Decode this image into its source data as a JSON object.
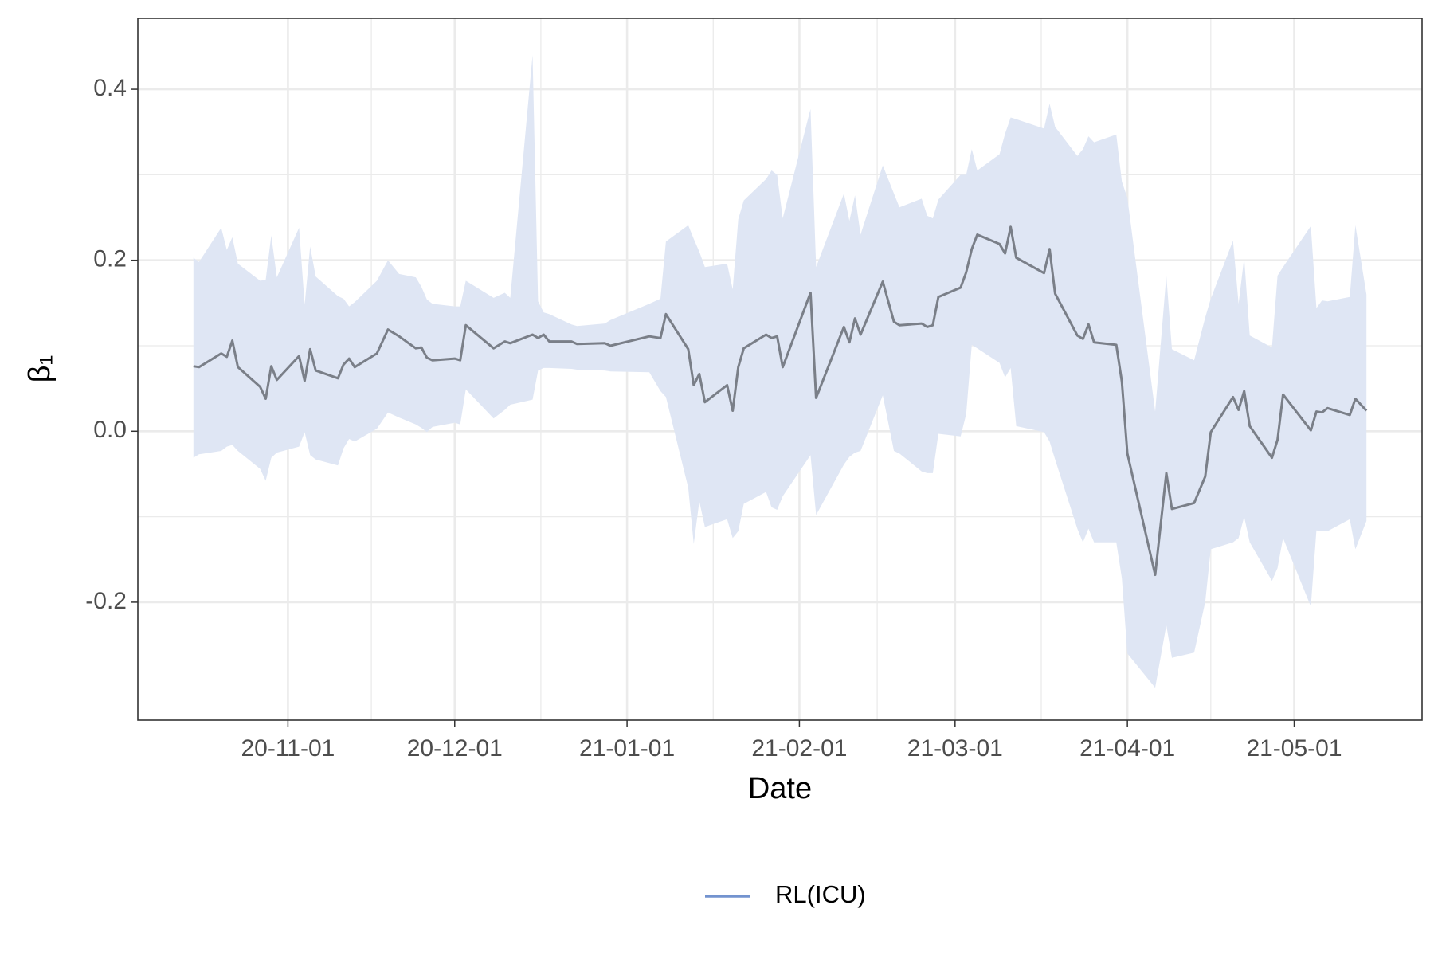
{
  "chart_data": {
    "type": "line-band",
    "xlabel": "Date",
    "ylabel": "β₁",
    "xlim": [
      "2020-10-05",
      "2021-05-24"
    ],
    "xticks": [
      {
        "value": "2020-11-01",
        "label": "20-11-01"
      },
      {
        "value": "2020-12-01",
        "label": "20-12-01"
      },
      {
        "value": "2021-01-01",
        "label": "21-01-01"
      },
      {
        "value": "2021-02-01",
        "label": "21-02-01"
      },
      {
        "value": "2021-03-01",
        "label": "21-03-01"
      },
      {
        "value": "2021-04-01",
        "label": "21-04-01"
      },
      {
        "value": "2021-05-01",
        "label": "21-05-01"
      }
    ],
    "ylim": [
      -0.338,
      0.483
    ],
    "yticks": [
      -0.2,
      {
        "value": 0,
        "label": "0.0"
      },
      0.2,
      0.4
    ],
    "grid": true,
    "legend": "bottom",
    "x": [
      "2020-10-15",
      "2020-10-16",
      "2020-10-20",
      "2020-10-21",
      "2020-10-22",
      "2020-10-23",
      "2020-10-27",
      "2020-10-28",
      "2020-10-29",
      "2020-10-30",
      "2020-11-03",
      "2020-11-04",
      "2020-11-05",
      "2020-11-06",
      "2020-11-10",
      "2020-11-11",
      "2020-11-12",
      "2020-11-13",
      "2020-11-17",
      "2020-11-19",
      "2020-11-21",
      "2020-11-24",
      "2020-11-25",
      "2020-11-26",
      "2020-11-27",
      "2020-12-01",
      "2020-12-02",
      "2020-12-03",
      "2020-12-08",
      "2020-12-10",
      "2020-12-11",
      "2020-12-15",
      "2020-12-16",
      "2020-12-17",
      "2020-12-18",
      "2020-12-22",
      "2020-12-23",
      "2020-12-28",
      "2020-12-29",
      "2021-01-05",
      "2021-01-07",
      "2021-01-08",
      "2021-01-12",
      "2021-01-13",
      "2021-01-14",
      "2021-01-15",
      "2021-01-19",
      "2021-01-20",
      "2021-01-21",
      "2021-01-22",
      "2021-01-26",
      "2021-01-27",
      "2021-01-28",
      "2021-01-29",
      "2021-02-03",
      "2021-02-04",
      "2021-02-09",
      "2021-02-10",
      "2021-02-11",
      "2021-02-12",
      "2021-02-16",
      "2021-02-18",
      "2021-02-19",
      "2021-02-23",
      "2021-02-24",
      "2021-02-25",
      "2021-02-26",
      "2021-03-02",
      "2021-03-03",
      "2021-03-04",
      "2021-03-05",
      "2021-03-09",
      "2021-03-10",
      "2021-03-11",
      "2021-03-12",
      "2021-03-17",
      "2021-03-18",
      "2021-03-19",
      "2021-03-23",
      "2021-03-24",
      "2021-03-25",
      "2021-03-26",
      "2021-03-30",
      "2021-03-31",
      "2021-04-01",
      "2021-04-06",
      "2021-04-08",
      "2021-04-09",
      "2021-04-13",
      "2021-04-15",
      "2021-04-16",
      "2021-04-20",
      "2021-04-21",
      "2021-04-22",
      "2021-04-23",
      "2021-04-27",
      "2021-04-28",
      "2021-04-29",
      "2021-05-04",
      "2021-05-05",
      "2021-05-06",
      "2021-05-07",
      "2021-05-11",
      "2021-05-12",
      "2021-05-14"
    ],
    "series": [
      {
        "name": "RL(ICU)",
        "color": "#7393cf",
        "line_color": "#7a7f88",
        "band_color": "#dfe6f4",
        "values": [
          0.076,
          0.075,
          0.091,
          0.087,
          0.106,
          0.075,
          0.052,
          0.038,
          0.076,
          0.06,
          0.088,
          0.059,
          0.096,
          0.071,
          0.062,
          0.078,
          0.085,
          0.075,
          0.091,
          0.119,
          0.111,
          0.097,
          0.098,
          0.086,
          0.083,
          0.085,
          0.083,
          0.124,
          0.097,
          0.105,
          0.103,
          0.113,
          0.109,
          0.113,
          0.105,
          0.105,
          0.102,
          0.103,
          0.1,
          0.111,
          0.109,
          0.137,
          0.096,
          0.054,
          0.067,
          0.034,
          0.054,
          0.024,
          0.075,
          0.097,
          0.113,
          0.109,
          0.111,
          0.075,
          0.162,
          0.039,
          0.122,
          0.104,
          0.132,
          0.113,
          0.175,
          0.128,
          0.124,
          0.126,
          0.122,
          0.124,
          0.157,
          0.168,
          0.186,
          0.213,
          0.23,
          0.219,
          0.208,
          0.239,
          0.203,
          0.185,
          0.213,
          0.161,
          0.112,
          0.108,
          0.125,
          0.104,
          0.101,
          0.058,
          -0.026,
          -0.168,
          -0.049,
          -0.091,
          -0.084,
          -0.053,
          -0.001,
          0.04,
          0.025,
          0.047,
          0.006,
          -0.031,
          -0.01,
          0.043,
          0.001,
          0.023,
          0.022,
          0.027,
          0.019,
          0.038,
          0.024
        ],
        "upper": [
          0.203,
          0.198,
          0.238,
          0.212,
          0.227,
          0.196,
          0.176,
          0.177,
          0.229,
          0.18,
          0.238,
          0.148,
          0.216,
          0.181,
          0.158,
          0.155,
          0.146,
          0.151,
          0.176,
          0.2,
          0.184,
          0.18,
          0.169,
          0.154,
          0.149,
          0.146,
          0.146,
          0.176,
          0.156,
          0.162,
          0.156,
          0.44,
          0.152,
          0.139,
          0.137,
          0.125,
          0.123,
          0.126,
          0.13,
          0.149,
          0.155,
          0.222,
          0.241,
          0.225,
          0.21,
          0.192,
          0.196,
          0.166,
          0.248,
          0.27,
          0.295,
          0.305,
          0.3,
          0.249,
          0.377,
          0.192,
          0.278,
          0.246,
          0.276,
          0.23,
          0.311,
          0.278,
          0.262,
          0.272,
          0.252,
          0.249,
          0.271,
          0.3,
          0.3,
          0.33,
          0.305,
          0.324,
          0.348,
          0.367,
          0.365,
          0.354,
          0.383,
          0.356,
          0.322,
          0.33,
          0.345,
          0.338,
          0.347,
          0.292,
          0.273,
          0.023,
          0.182,
          0.096,
          0.083,
          0.133,
          0.155,
          0.223,
          0.149,
          0.203,
          0.112,
          0.098,
          0.182,
          0.192,
          0.24,
          0.144,
          0.153,
          0.152,
          0.157,
          0.241,
          0.16
        ],
        "lower": [
          -0.031,
          -0.027,
          -0.023,
          -0.018,
          -0.016,
          -0.023,
          -0.044,
          -0.058,
          -0.031,
          -0.025,
          -0.018,
          -0.001,
          -0.028,
          -0.033,
          -0.04,
          -0.02,
          -0.009,
          -0.012,
          0.003,
          0.022,
          0.016,
          0.008,
          0.004,
          -0.001,
          0.005,
          0.01,
          0.008,
          0.049,
          0.015,
          0.025,
          0.031,
          0.037,
          0.071,
          0.074,
          0.074,
          0.073,
          0.072,
          0.071,
          0.07,
          0.069,
          0.047,
          0.04,
          -0.066,
          -0.132,
          -0.082,
          -0.112,
          -0.103,
          -0.125,
          -0.117,
          -0.085,
          -0.071,
          -0.089,
          -0.092,
          -0.076,
          -0.028,
          -0.098,
          -0.039,
          -0.03,
          -0.025,
          -0.023,
          0.042,
          -0.023,
          -0.026,
          -0.047,
          -0.049,
          -0.049,
          -0.003,
          -0.006,
          0.02,
          0.101,
          0.097,
          0.08,
          0.063,
          0.074,
          0.006,
          -0.001,
          -0.012,
          -0.033,
          -0.114,
          -0.13,
          -0.114,
          -0.13,
          -0.13,
          -0.172,
          -0.26,
          -0.3,
          -0.227,
          -0.265,
          -0.259,
          -0.2,
          -0.138,
          -0.13,
          -0.125,
          -0.1,
          -0.13,
          -0.175,
          -0.16,
          -0.125,
          -0.205,
          -0.116,
          -0.117,
          -0.117,
          -0.103,
          -0.138,
          -0.105
        ]
      }
    ]
  }
}
